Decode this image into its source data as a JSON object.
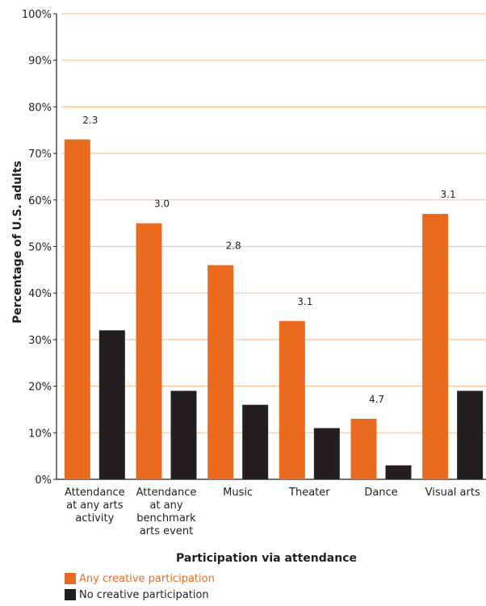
{
  "chart_data": {
    "type": "bar",
    "title": "",
    "xlabel": "Participation via attendance",
    "ylabel": "Percentage of U.S. adults",
    "ylim": [
      0,
      100
    ],
    "yticks": [
      "0%",
      "10%",
      "20%",
      "30%",
      "40%",
      "50%",
      "60%",
      "70%",
      "80%",
      "90%",
      "100%"
    ],
    "grid": true,
    "legend_position": "bottom-left",
    "categories": [
      [
        "Attendance",
        "at any arts",
        "activity"
      ],
      [
        "Attendance",
        "at any",
        "benchmark",
        "arts event"
      ],
      [
        "Music"
      ],
      [
        "Theater"
      ],
      [
        "Dance"
      ],
      [
        "Visual arts"
      ]
    ],
    "series": [
      {
        "name": "Any creative participation",
        "color": "#ea6b1f",
        "values": [
          73,
          55,
          46,
          34,
          13,
          57
        ]
      },
      {
        "name": "No creative participation",
        "color": "#231f20",
        "values": [
          32,
          19,
          16,
          11,
          3,
          19
        ]
      }
    ],
    "ratio_labels": [
      "2.3",
      "3.0",
      "2.8",
      "3.1",
      "4.7",
      "3.1"
    ],
    "gridline_color": "#f5c69a"
  }
}
